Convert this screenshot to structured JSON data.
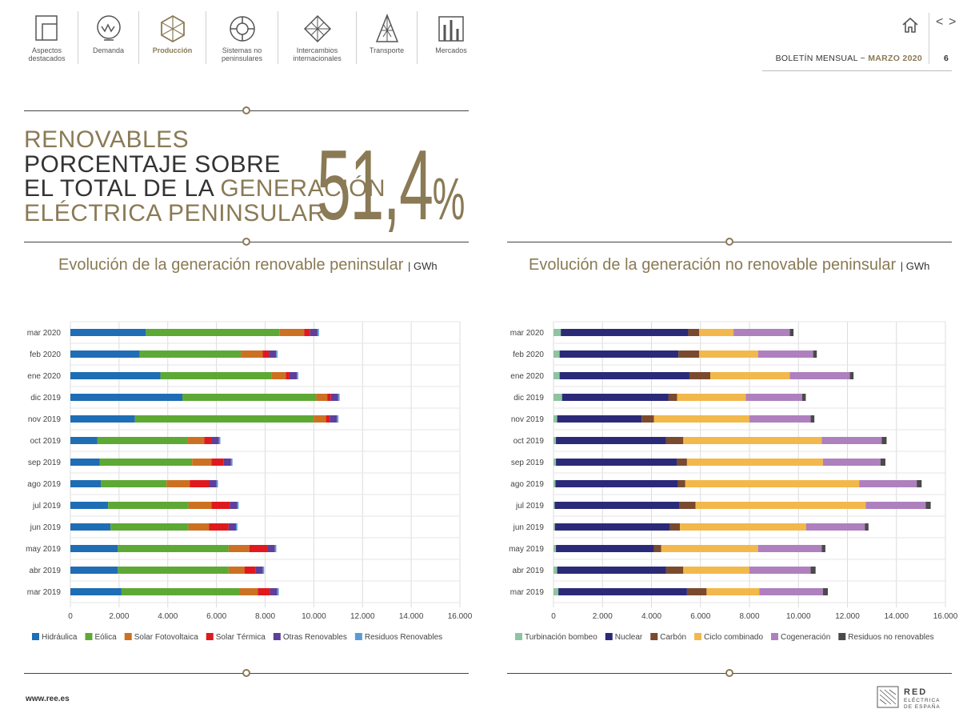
{
  "nav": [
    {
      "label": "Aspectos\ndestacados",
      "icon": "highlights-icon",
      "active": false
    },
    {
      "label": "Demanda",
      "icon": "demand-icon",
      "active": false
    },
    {
      "label": "Producción",
      "icon": "production-icon",
      "active": true
    },
    {
      "label": "Sistemas no\npeninsulares",
      "icon": "non-peninsular-icon",
      "active": false
    },
    {
      "label": "Intercambios\ninternacionales",
      "icon": "exchanges-icon",
      "active": false
    },
    {
      "label": "Transporte",
      "icon": "transport-icon",
      "active": false
    },
    {
      "label": "Mercados",
      "icon": "markets-icon",
      "active": false
    }
  ],
  "header": {
    "bulletin_prefix": "BOLETÍN MENSUAL",
    "separator": "~",
    "bulletin_date": "MARZO 2020",
    "page_number": "6",
    "prev": "<",
    "next": ">"
  },
  "headline": {
    "line1": "RENOVABLES",
    "line2": "PORCENTAJE SOBRE",
    "line3a": "EL TOTAL DE LA ",
    "line3b": "GENERACIÓN",
    "line4": "ELÉCTRICA PENINSULAR",
    "value": "51,4",
    "pct": "%"
  },
  "footer": {
    "url": "www.ree.es",
    "logo_text": "RED ELÉCTRICA DE ESPAÑA"
  },
  "colors": {
    "gold": "#8a7a55"
  },
  "chart_data": [
    {
      "type": "bar",
      "orientation": "horizontal",
      "stacked": true,
      "title": "Evolución de la generación renovable peninsular",
      "unit": "GWh",
      "categories": [
        "mar 2020",
        "feb 2020",
        "ene 2020",
        "dic 2019",
        "nov 2019",
        "oct 2019",
        "sep 2019",
        "ago 2019",
        "jul 2019",
        "jun 2019",
        "may 2019",
        "abr 2019",
        "mar 2019"
      ],
      "xlim": [
        0,
        16000
      ],
      "xticks": [
        "0",
        "2.000",
        "4.000",
        "6.000",
        "8.000",
        "10.000",
        "12.000",
        "14.000",
        "16.000"
      ],
      "grid": true,
      "legend_position": "bottom",
      "series": [
        {
          "name": "Hidráulica",
          "color": "#1f6db4",
          "values": [
            3100,
            2850,
            3700,
            4600,
            2650,
            1100,
            1200,
            1250,
            1550,
            1650,
            1950,
            1950,
            2100
          ]
        },
        {
          "name": "Eólica",
          "color": "#5ea835",
          "values": [
            5500,
            4150,
            4550,
            5500,
            7350,
            3700,
            3800,
            2700,
            3300,
            3200,
            4550,
            4550,
            4850
          ]
        },
        {
          "name": "Solar Fotovoltaica",
          "color": "#cc7122",
          "values": [
            1000,
            900,
            600,
            450,
            500,
            700,
            800,
            950,
            950,
            850,
            850,
            650,
            750
          ]
        },
        {
          "name": "Solar Térmica",
          "color": "#e0191e",
          "values": [
            250,
            250,
            150,
            150,
            150,
            300,
            500,
            800,
            750,
            800,
            750,
            450,
            500
          ]
        },
        {
          "name": "Otras Renovables",
          "color": "#5e3f9a",
          "values": [
            300,
            300,
            300,
            300,
            300,
            300,
            300,
            300,
            300,
            300,
            300,
            300,
            300
          ]
        },
        {
          "name": "Residuos Renovables",
          "color": "#5b9bd5",
          "values": [
            60,
            60,
            60,
            60,
            60,
            60,
            60,
            60,
            60,
            60,
            60,
            60,
            60
          ]
        }
      ]
    },
    {
      "type": "bar",
      "orientation": "horizontal",
      "stacked": true,
      "title": "Evolución de la generación no renovable peninsular",
      "unit": "GWh",
      "categories": [
        "mar 2020",
        "feb 2020",
        "ene 2020",
        "dic 2019",
        "nov 2019",
        "oct 2019",
        "sep 2019",
        "ago 2019",
        "jul 2019",
        "jun 2019",
        "may 2019",
        "abr 2019",
        "mar 2019"
      ],
      "xlim": [
        0,
        16000
      ],
      "xticks": [
        "0",
        "2.000",
        "4.000",
        "6.000",
        "8.000",
        "10.000",
        "12.000",
        "14.000",
        "16.000"
      ],
      "grid": true,
      "legend_position": "bottom",
      "series": [
        {
          "name": "Turbinación bombeo",
          "color": "#8fc4a2",
          "values": [
            300,
            250,
            250,
            350,
            150,
            100,
            100,
            80,
            50,
            60,
            100,
            150,
            200
          ]
        },
        {
          "name": "Nuclear",
          "color": "#2b2a78",
          "values": [
            5200,
            4850,
            5300,
            4350,
            3450,
            4500,
            4950,
            5000,
            5100,
            4700,
            4000,
            4450,
            5250
          ]
        },
        {
          "name": "Carbón",
          "color": "#7a4a2e",
          "values": [
            450,
            850,
            850,
            350,
            500,
            700,
            400,
            300,
            650,
            400,
            300,
            700,
            800
          ]
        },
        {
          "name": "Ciclo combinado",
          "color": "#f2b84b",
          "values": [
            1400,
            2400,
            3250,
            2800,
            3900,
            5650,
            5550,
            7100,
            6950,
            5150,
            3950,
            2700,
            2150
          ]
        },
        {
          "name": "Cogeneración",
          "color": "#ae80be",
          "values": [
            2300,
            2250,
            2450,
            2300,
            2500,
            2450,
            2350,
            2350,
            2450,
            2400,
            2600,
            2500,
            2600
          ]
        },
        {
          "name": "Residuos no renovables",
          "color": "#4a4a4a",
          "values": [
            150,
            150,
            150,
            150,
            150,
            200,
            200,
            200,
            200,
            150,
            150,
            200,
            200
          ]
        }
      ]
    }
  ]
}
